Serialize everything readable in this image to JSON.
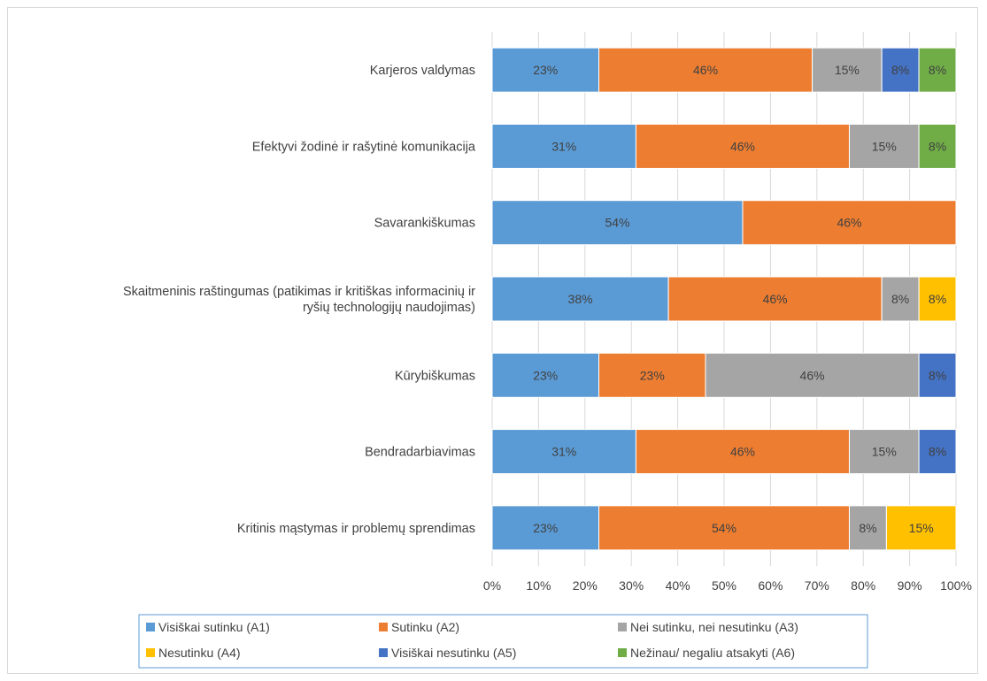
{
  "chart_data": {
    "type": "bar",
    "orientation": "horizontal",
    "stacked": true,
    "normalized": true,
    "title": "",
    "xlabel": "",
    "ylabel": "",
    "xlim": [
      0,
      100
    ],
    "x_ticks": [
      "0%",
      "10%",
      "20%",
      "30%",
      "40%",
      "50%",
      "60%",
      "70%",
      "80%",
      "90%",
      "100%"
    ],
    "grid": "vertical",
    "legend_position": "bottom",
    "categories": [
      [
        "Karjeros valdymas"
      ],
      [
        "Efektyvi žodinė ir rašytinė komunikacija"
      ],
      [
        "Savarankiškumas"
      ],
      [
        "Skaitmeninis raštingumas (patikimas ir kritiškas informacinių ir",
        "ryšių technologijų naudojimas)"
      ],
      [
        "Kūrybiškumas"
      ],
      [
        "Bendradarbiavimas"
      ],
      [
        "Kritinis mąstymas ir problemų sprendimas"
      ]
    ],
    "series": [
      {
        "name": "Visiškai sutinku (A1)",
        "color": "#5b9bd5",
        "values": [
          23,
          31,
          54,
          38,
          23,
          31,
          23
        ],
        "labels": [
          "23%",
          "31%",
          "54%",
          "38%",
          "23%",
          "31%",
          "23%"
        ]
      },
      {
        "name": "Sutinku (A2)",
        "color": "#ed7d31",
        "values": [
          46,
          46,
          46,
          46,
          23,
          46,
          54
        ],
        "labels": [
          "46%",
          "46%",
          "46%",
          "46%",
          "23%",
          "46%",
          "54%"
        ]
      },
      {
        "name": "Nei sutinku, nei nesutinku (A3)",
        "color": "#a5a5a5",
        "values": [
          15,
          15,
          0,
          8,
          46,
          15,
          8
        ],
        "labels": [
          "15%",
          "15%",
          "",
          "8%",
          "46%",
          "15%",
          "8%"
        ]
      },
      {
        "name": "Nesutinku (A4)",
        "color": "#ffc000",
        "values": [
          0,
          0,
          0,
          8,
          0,
          0,
          15
        ],
        "labels": [
          "",
          "",
          "",
          "8%",
          "",
          "",
          "15%"
        ]
      },
      {
        "name": "Visiškai nesutinku (A5)",
        "color": "#4472c4",
        "values": [
          8,
          0,
          0,
          0,
          8,
          8,
          0
        ],
        "labels": [
          "8%",
          "",
          "",
          "",
          "8%",
          "8%",
          ""
        ]
      },
      {
        "name": "Nežinau/ negaliu atsakyti (A6)",
        "color": "#70ad47",
        "values": [
          8,
          8,
          0,
          0,
          0,
          0,
          0
        ],
        "labels": [
          "8%",
          "8%",
          "",
          "",
          "",
          "",
          ""
        ]
      }
    ]
  }
}
